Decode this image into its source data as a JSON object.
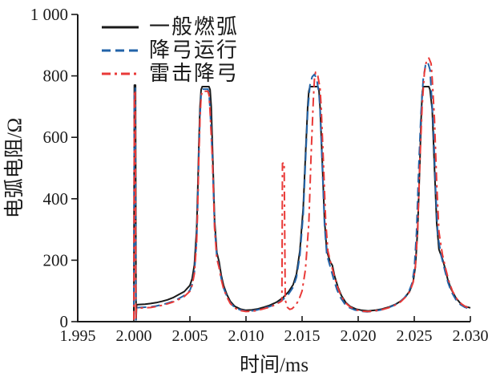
{
  "figure": {
    "background": "#ffffff",
    "axis_color": "#1a1a1a"
  },
  "chart_data": {
    "type": "line",
    "title": "",
    "xlabel": "时间/ms",
    "ylabel": "电弧电阻/Ω",
    "xlim": [
      1.995,
      2.03
    ],
    "ylim": [
      0,
      1000
    ],
    "grid": false,
    "legend_position": "top-left-inside",
    "x_ticks": [
      1.995,
      2.0,
      2.005,
      2.01,
      2.015,
      2.02,
      2.025,
      2.03
    ],
    "x_tick_labels": [
      "1.995",
      "2.000",
      "2.005",
      "2.010",
      "2.015",
      "2.020",
      "2.025",
      "2.030"
    ],
    "y_ticks": [
      0,
      200,
      400,
      600,
      800,
      1000
    ],
    "y_tick_labels": [
      "0",
      "200",
      "400",
      "600",
      "800",
      "1 000"
    ],
    "series": [
      {
        "name": "一般燃弧",
        "color": "#1a1a1a",
        "style": "solid",
        "points": [
          [
            2.0,
            6
          ],
          [
            2.00005,
            770
          ],
          [
            2.00015,
            770
          ],
          [
            2.0002,
            6
          ],
          [
            2.00025,
            55
          ],
          [
            2.0005,
            56
          ],
          [
            2.001,
            57
          ],
          [
            2.0015,
            59
          ],
          [
            2.002,
            62
          ],
          [
            2.0025,
            66
          ],
          [
            2.003,
            71
          ],
          [
            2.0035,
            78
          ],
          [
            2.004,
            88
          ],
          [
            2.0045,
            98
          ],
          [
            2.005,
            118
          ],
          [
            2.0052,
            140
          ],
          [
            2.0054,
            185
          ],
          [
            2.0056,
            300
          ],
          [
            2.0057,
            430
          ],
          [
            2.0058,
            580
          ],
          [
            2.0059,
            700
          ],
          [
            2.006,
            755
          ],
          [
            2.0061,
            765
          ],
          [
            2.0067,
            765
          ],
          [
            2.0068,
            755
          ],
          [
            2.0069,
            700
          ],
          [
            2.007,
            580
          ],
          [
            2.0072,
            330
          ],
          [
            2.0074,
            225
          ],
          [
            2.0076,
            195
          ],
          [
            2.0078,
            150
          ],
          [
            2.008,
            118
          ],
          [
            2.0083,
            88
          ],
          [
            2.0086,
            66
          ],
          [
            2.009,
            50
          ],
          [
            2.0095,
            41
          ],
          [
            2.01,
            37
          ],
          [
            2.0105,
            38
          ],
          [
            2.011,
            41
          ],
          [
            2.0115,
            46
          ],
          [
            2.0121,
            53
          ],
          [
            2.0127,
            63
          ],
          [
            2.0133,
            78
          ],
          [
            2.0138,
            98
          ],
          [
            2.0142,
            120
          ],
          [
            2.0145,
            155
          ],
          [
            2.0148,
            230
          ],
          [
            2.0151,
            370
          ],
          [
            2.0153,
            540
          ],
          [
            2.0155,
            700
          ],
          [
            2.0156,
            750
          ],
          [
            2.0157,
            765
          ],
          [
            2.0164,
            765
          ],
          [
            2.0165,
            755
          ],
          [
            2.0166,
            700
          ],
          [
            2.0168,
            520
          ],
          [
            2.017,
            330
          ],
          [
            2.0172,
            230
          ],
          [
            2.0175,
            195
          ],
          [
            2.0177,
            183
          ],
          [
            2.0179,
            148
          ],
          [
            2.0182,
            112
          ],
          [
            2.0185,
            85
          ],
          [
            2.0189,
            62
          ],
          [
            2.0193,
            49
          ],
          [
            2.0198,
            41
          ],
          [
            2.0203,
            37
          ],
          [
            2.0209,
            35
          ],
          [
            2.0215,
            37
          ],
          [
            2.0221,
            41
          ],
          [
            2.0227,
            47
          ],
          [
            2.0233,
            56
          ],
          [
            2.0238,
            67
          ],
          [
            2.0242,
            80
          ],
          [
            2.0246,
            100
          ],
          [
            2.0249,
            130
          ],
          [
            2.0251,
            180
          ],
          [
            2.0253,
            300
          ],
          [
            2.0255,
            520
          ],
          [
            2.0256,
            650
          ],
          [
            2.0257,
            740
          ],
          [
            2.0258,
            765
          ],
          [
            2.0263,
            765
          ],
          [
            2.0264,
            755
          ],
          [
            2.0266,
            690
          ],
          [
            2.0268,
            500
          ],
          [
            2.027,
            320
          ],
          [
            2.0272,
            235
          ],
          [
            2.0275,
            205
          ],
          [
            2.0277,
            180
          ],
          [
            2.028,
            135
          ],
          [
            2.0283,
            105
          ],
          [
            2.0287,
            78
          ],
          [
            2.0291,
            60
          ],
          [
            2.0295,
            50
          ],
          [
            2.03,
            45
          ]
        ]
      },
      {
        "name": "降弓运行",
        "color": "#2263a8",
        "style": "dashed",
        "points": [
          [
            2.0,
            6
          ],
          [
            2.00005,
            760
          ],
          [
            2.00012,
            760
          ],
          [
            2.00018,
            6
          ],
          [
            2.00022,
            45
          ],
          [
            2.0005,
            46
          ],
          [
            2.001,
            47
          ],
          [
            2.0015,
            48
          ],
          [
            2.002,
            51
          ],
          [
            2.0025,
            55
          ],
          [
            2.003,
            60
          ],
          [
            2.0035,
            66
          ],
          [
            2.004,
            75
          ],
          [
            2.0045,
            85
          ],
          [
            2.005,
            102
          ],
          [
            2.0052,
            122
          ],
          [
            2.0054,
            162
          ],
          [
            2.0056,
            265
          ],
          [
            2.0057,
            390
          ],
          [
            2.0058,
            545
          ],
          [
            2.0059,
            670
          ],
          [
            2.006,
            740
          ],
          [
            2.0061,
            757
          ],
          [
            2.0066,
            757
          ],
          [
            2.0067,
            745
          ],
          [
            2.0068,
            690
          ],
          [
            2.007,
            540
          ],
          [
            2.0072,
            310
          ],
          [
            2.0074,
            210
          ],
          [
            2.0076,
            180
          ],
          [
            2.0078,
            140
          ],
          [
            2.008,
            110
          ],
          [
            2.0083,
            82
          ],
          [
            2.0086,
            61
          ],
          [
            2.009,
            46
          ],
          [
            2.0095,
            38
          ],
          [
            2.01,
            34
          ],
          [
            2.0105,
            35
          ],
          [
            2.011,
            38
          ],
          [
            2.0115,
            43
          ],
          [
            2.0121,
            49
          ],
          [
            2.0127,
            58
          ],
          [
            2.0133,
            72
          ],
          [
            2.0138,
            90
          ],
          [
            2.0142,
            112
          ],
          [
            2.0145,
            145
          ],
          [
            2.0148,
            215
          ],
          [
            2.0151,
            350
          ],
          [
            2.0153,
            520
          ],
          [
            2.0155,
            685
          ],
          [
            2.0157,
            770
          ],
          [
            2.0159,
            797
          ],
          [
            2.0161,
            805
          ],
          [
            2.0163,
            790
          ],
          [
            2.0165,
            745
          ],
          [
            2.0166,
            690
          ],
          [
            2.0168,
            505
          ],
          [
            2.017,
            315
          ],
          [
            2.0172,
            218
          ],
          [
            2.0175,
            180
          ],
          [
            2.0178,
            140
          ],
          [
            2.0181,
            105
          ],
          [
            2.0184,
            80
          ],
          [
            2.0188,
            58
          ],
          [
            2.0192,
            46
          ],
          [
            2.0197,
            38
          ],
          [
            2.0202,
            34
          ],
          [
            2.0208,
            32
          ],
          [
            2.0214,
            34
          ],
          [
            2.022,
            38
          ],
          [
            2.0226,
            44
          ],
          [
            2.0232,
            53
          ],
          [
            2.0237,
            64
          ],
          [
            2.0241,
            77
          ],
          [
            2.0245,
            96
          ],
          [
            2.0248,
            125
          ],
          [
            2.025,
            172
          ],
          [
            2.0252,
            290
          ],
          [
            2.0254,
            505
          ],
          [
            2.0256,
            680
          ],
          [
            2.0258,
            790
          ],
          [
            2.026,
            835
          ],
          [
            2.0262,
            845
          ],
          [
            2.0264,
            820
          ],
          [
            2.0265,
            760
          ],
          [
            2.0267,
            640
          ],
          [
            2.0269,
            430
          ],
          [
            2.0271,
            280
          ],
          [
            2.0274,
            215
          ],
          [
            2.0277,
            170
          ],
          [
            2.028,
            128
          ],
          [
            2.0283,
            98
          ],
          [
            2.0287,
            72
          ],
          [
            2.0291,
            56
          ],
          [
            2.0295,
            47
          ],
          [
            2.03,
            41
          ]
        ]
      },
      {
        "name": "雷击降弓",
        "color": "#e93a38",
        "style": "dash-dot",
        "points": [
          [
            2.0,
            6
          ],
          [
            2.00005,
            752
          ],
          [
            2.00012,
            752
          ],
          [
            2.00018,
            6
          ],
          [
            2.00022,
            43
          ],
          [
            2.0005,
            44
          ],
          [
            2.001,
            45
          ],
          [
            2.0015,
            46
          ],
          [
            2.002,
            49
          ],
          [
            2.0025,
            53
          ],
          [
            2.003,
            58
          ],
          [
            2.0035,
            64
          ],
          [
            2.004,
            72
          ],
          [
            2.0045,
            82
          ],
          [
            2.005,
            99
          ],
          [
            2.0052,
            118
          ],
          [
            2.0054,
            157
          ],
          [
            2.0056,
            258
          ],
          [
            2.0057,
            382
          ],
          [
            2.0058,
            537
          ],
          [
            2.0059,
            662
          ],
          [
            2.006,
            733
          ],
          [
            2.0061,
            750
          ],
          [
            2.0066,
            750
          ],
          [
            2.0067,
            738
          ],
          [
            2.0068,
            682
          ],
          [
            2.007,
            532
          ],
          [
            2.0072,
            303
          ],
          [
            2.0074,
            205
          ],
          [
            2.0076,
            176
          ],
          [
            2.0078,
            136
          ],
          [
            2.008,
            107
          ],
          [
            2.0083,
            80
          ],
          [
            2.0086,
            59
          ],
          [
            2.009,
            44
          ],
          [
            2.0095,
            36
          ],
          [
            2.01,
            33
          ],
          [
            2.0105,
            34
          ],
          [
            2.011,
            36
          ],
          [
            2.0115,
            41
          ],
          [
            2.0121,
            47
          ],
          [
            2.0126,
            55
          ],
          [
            2.013,
            63
          ],
          [
            2.0132,
            68
          ],
          [
            2.01325,
            515
          ],
          [
            2.0134,
            518
          ],
          [
            2.01345,
            300
          ],
          [
            2.0135,
            70
          ],
          [
            2.0137,
            46
          ],
          [
            2.0139,
            40
          ],
          [
            2.0141,
            42
          ],
          [
            2.0144,
            52
          ],
          [
            2.0147,
            70
          ],
          [
            2.015,
            100
          ],
          [
            2.0153,
            170
          ],
          [
            2.0156,
            320
          ],
          [
            2.0158,
            540
          ],
          [
            2.016,
            720
          ],
          [
            2.0161,
            790
          ],
          [
            2.0162,
            812
          ],
          [
            2.0164,
            800
          ],
          [
            2.0166,
            760
          ],
          [
            2.0167,
            700
          ],
          [
            2.0169,
            520
          ],
          [
            2.0171,
            330
          ],
          [
            2.0173,
            230
          ],
          [
            2.0176,
            185
          ],
          [
            2.0179,
            145
          ],
          [
            2.0182,
            108
          ],
          [
            2.0185,
            82
          ],
          [
            2.0189,
            60
          ],
          [
            2.0193,
            47
          ],
          [
            2.0198,
            39
          ],
          [
            2.0203,
            34
          ],
          [
            2.0209,
            33
          ],
          [
            2.0215,
            35
          ],
          [
            2.0221,
            39
          ],
          [
            2.0227,
            45
          ],
          [
            2.0233,
            54
          ],
          [
            2.0238,
            65
          ],
          [
            2.0242,
            79
          ],
          [
            2.0246,
            98
          ],
          [
            2.0249,
            128
          ],
          [
            2.0251,
            178
          ],
          [
            2.0253,
            300
          ],
          [
            2.0255,
            520
          ],
          [
            2.0257,
            700
          ],
          [
            2.0259,
            810
          ],
          [
            2.0261,
            852
          ],
          [
            2.0263,
            858
          ],
          [
            2.0265,
            840
          ],
          [
            2.0266,
            790
          ],
          [
            2.0268,
            660
          ],
          [
            2.027,
            450
          ],
          [
            2.0272,
            292
          ],
          [
            2.0275,
            220
          ],
          [
            2.0278,
            172
          ],
          [
            2.0281,
            130
          ],
          [
            2.0284,
            100
          ],
          [
            2.0288,
            74
          ],
          [
            2.0292,
            58
          ],
          [
            2.0296,
            48
          ],
          [
            2.03,
            44
          ]
        ]
      }
    ]
  }
}
